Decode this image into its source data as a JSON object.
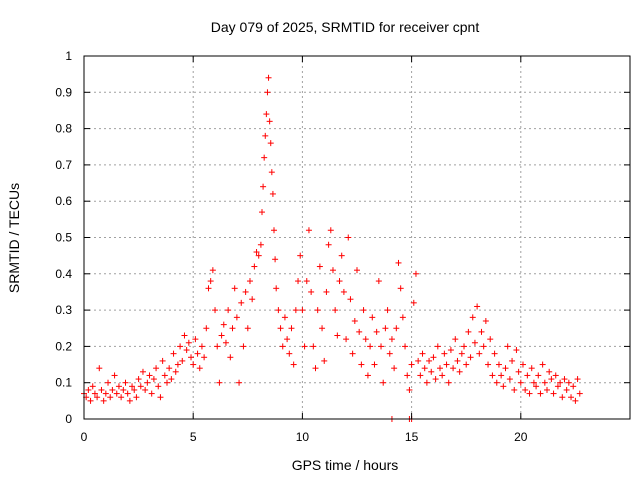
{
  "chart_data": {
    "type": "scatter",
    "title": "Day 079 of 2025, SRMTID for receiver cpnt",
    "xlabel": "GPS time / hours",
    "ylabel": "SRMTID / TECUs",
    "xlim": [
      0,
      25
    ],
    "ylim": [
      0,
      1
    ],
    "xticks": [
      0,
      5,
      10,
      15,
      20
    ],
    "xtick_labels": [
      "0",
      "5",
      "10",
      "15",
      "20"
    ],
    "yticks": [
      0,
      0.1,
      0.2,
      0.3,
      0.4,
      0.5,
      0.6,
      0.7,
      0.8,
      0.9,
      1
    ],
    "ytick_labels": [
      "0",
      "0.1",
      "0.2",
      "0.3",
      "0.4",
      "0.5",
      "0.6",
      "0.7",
      "0.8",
      "0.9",
      "1"
    ],
    "grid": true,
    "marker": "+",
    "color": "#ff0000",
    "series": [
      {
        "name": "SRMTID",
        "points": [
          [
            0.0,
            0.07
          ],
          [
            0.1,
            0.06
          ],
          [
            0.2,
            0.08
          ],
          [
            0.3,
            0.05
          ],
          [
            0.4,
            0.09
          ],
          [
            0.5,
            0.07
          ],
          [
            0.6,
            0.06
          ],
          [
            0.7,
            0.14
          ],
          [
            0.8,
            0.08
          ],
          [
            0.9,
            0.05
          ],
          [
            1.0,
            0.07
          ],
          [
            1.1,
            0.1
          ],
          [
            1.2,
            0.06
          ],
          [
            1.3,
            0.08
          ],
          [
            1.4,
            0.12
          ],
          [
            1.5,
            0.07
          ],
          [
            1.6,
            0.09
          ],
          [
            1.7,
            0.06
          ],
          [
            1.8,
            0.08
          ],
          [
            1.9,
            0.1
          ],
          [
            2.0,
            0.07
          ],
          [
            2.1,
            0.05
          ],
          [
            2.2,
            0.09
          ],
          [
            2.3,
            0.08
          ],
          [
            2.4,
            0.06
          ],
          [
            2.5,
            0.11
          ],
          [
            2.6,
            0.09
          ],
          [
            2.7,
            0.13
          ],
          [
            2.8,
            0.08
          ],
          [
            2.9,
            0.1
          ],
          [
            3.0,
            0.12
          ],
          [
            3.1,
            0.07
          ],
          [
            3.2,
            0.11
          ],
          [
            3.3,
            0.14
          ],
          [
            3.4,
            0.09
          ],
          [
            3.5,
            0.06
          ],
          [
            3.6,
            0.16
          ],
          [
            3.7,
            0.12
          ],
          [
            3.8,
            0.1
          ],
          [
            3.9,
            0.14
          ],
          [
            4.0,
            0.11
          ],
          [
            4.1,
            0.18
          ],
          [
            4.2,
            0.13
          ],
          [
            4.3,
            0.15
          ],
          [
            4.4,
            0.2
          ],
          [
            4.5,
            0.16
          ],
          [
            4.6,
            0.23
          ],
          [
            4.7,
            0.19
          ],
          [
            4.8,
            0.21
          ],
          [
            4.9,
            0.17
          ],
          [
            5.0,
            0.15
          ],
          [
            5.1,
            0.22
          ],
          [
            5.2,
            0.18
          ],
          [
            5.3,
            0.14
          ],
          [
            5.4,
            0.2
          ],
          [
            5.5,
            0.17
          ],
          [
            5.6,
            0.25
          ],
          [
            5.7,
            0.36
          ],
          [
            5.8,
            0.38
          ],
          [
            5.9,
            0.41
          ],
          [
            6.0,
            0.3
          ],
          [
            6.1,
            0.2
          ],
          [
            6.2,
            0.1
          ],
          [
            6.3,
            0.23
          ],
          [
            6.4,
            0.26
          ],
          [
            6.5,
            0.21
          ],
          [
            6.6,
            0.3
          ],
          [
            6.7,
            0.17
          ],
          [
            6.8,
            0.25
          ],
          [
            6.9,
            0.36
          ],
          [
            7.0,
            0.28
          ],
          [
            7.1,
            0.1
          ],
          [
            7.2,
            0.32
          ],
          [
            7.3,
            0.2
          ],
          [
            7.4,
            0.35
          ],
          [
            7.5,
            0.25
          ],
          [
            7.6,
            0.38
          ],
          [
            7.7,
            0.33
          ],
          [
            7.8,
            0.42
          ],
          [
            7.9,
            0.46
          ],
          [
            8.0,
            0.45
          ],
          [
            8.1,
            0.48
          ],
          [
            8.15,
            0.57
          ],
          [
            8.2,
            0.64
          ],
          [
            8.25,
            0.72
          ],
          [
            8.3,
            0.78
          ],
          [
            8.35,
            0.84
          ],
          [
            8.4,
            0.9
          ],
          [
            8.45,
            0.94
          ],
          [
            8.5,
            0.82
          ],
          [
            8.55,
            0.76
          ],
          [
            8.6,
            0.68
          ],
          [
            8.65,
            0.62
          ],
          [
            8.7,
            0.52
          ],
          [
            8.75,
            0.44
          ],
          [
            8.8,
            0.36
          ],
          [
            8.9,
            0.3
          ],
          [
            9.0,
            0.25
          ],
          [
            9.1,
            0.2
          ],
          [
            9.2,
            0.28
          ],
          [
            9.3,
            0.22
          ],
          [
            9.4,
            0.18
          ],
          [
            9.5,
            0.25
          ],
          [
            9.6,
            0.15
          ],
          [
            9.7,
            0.3
          ],
          [
            9.8,
            0.38
          ],
          [
            9.9,
            0.45
          ],
          [
            10.0,
            0.3
          ],
          [
            10.1,
            0.2
          ],
          [
            10.2,
            0.38
          ],
          [
            10.3,
            0.52
          ],
          [
            10.4,
            0.35
          ],
          [
            10.5,
            0.2
          ],
          [
            10.6,
            0.14
          ],
          [
            10.7,
            0.3
          ],
          [
            10.8,
            0.42
          ],
          [
            10.9,
            0.25
          ],
          [
            11.0,
            0.16
          ],
          [
            11.1,
            0.35
          ],
          [
            11.2,
            0.48
          ],
          [
            11.3,
            0.52
          ],
          [
            11.4,
            0.41
          ],
          [
            11.5,
            0.3
          ],
          [
            11.6,
            0.23
          ],
          [
            11.7,
            0.38
          ],
          [
            11.8,
            0.45
          ],
          [
            11.9,
            0.35
          ],
          [
            12.0,
            0.22
          ],
          [
            12.1,
            0.5
          ],
          [
            12.2,
            0.33
          ],
          [
            12.3,
            0.18
          ],
          [
            12.4,
            0.27
          ],
          [
            12.5,
            0.41
          ],
          [
            12.6,
            0.24
          ],
          [
            12.7,
            0.15
          ],
          [
            12.8,
            0.3
          ],
          [
            12.9,
            0.22
          ],
          [
            13.0,
            0.12
          ],
          [
            13.1,
            0.2
          ],
          [
            13.2,
            0.28
          ],
          [
            13.3,
            0.15
          ],
          [
            13.4,
            0.24
          ],
          [
            13.5,
            0.38
          ],
          [
            13.6,
            0.2
          ],
          [
            13.7,
            0.1
          ],
          [
            13.8,
            0.25
          ],
          [
            13.9,
            0.3
          ],
          [
            14.0,
            0.18
          ],
          [
            14.1,
            0.22
          ],
          [
            14.2,
            0.14
          ],
          [
            14.3,
            0.25
          ],
          [
            14.4,
            0.43
          ],
          [
            14.5,
            0.36
          ],
          [
            14.6,
            0.28
          ],
          [
            14.7,
            0.2
          ],
          [
            14.8,
            0.12
          ],
          [
            14.9,
            0.08
          ],
          [
            15.0,
            0.15
          ],
          [
            15.1,
            0.32
          ],
          [
            15.2,
            0.4
          ],
          [
            15.3,
            0.16
          ],
          [
            15.4,
            0.12
          ],
          [
            15.5,
            0.18
          ],
          [
            15.6,
            0.14
          ],
          [
            15.7,
            0.1
          ],
          [
            15.8,
            0.16
          ],
          [
            15.9,
            0.13
          ],
          [
            16.0,
            0.17
          ],
          [
            16.1,
            0.11
          ],
          [
            16.2,
            0.2
          ],
          [
            16.3,
            0.14
          ],
          [
            16.4,
            0.12
          ],
          [
            16.5,
            0.18
          ],
          [
            16.6,
            0.15
          ],
          [
            16.7,
            0.1
          ],
          [
            16.8,
            0.19
          ],
          [
            16.9,
            0.14
          ],
          [
            17.0,
            0.22
          ],
          [
            17.1,
            0.16
          ],
          [
            17.2,
            0.13
          ],
          [
            17.3,
            0.18
          ],
          [
            17.4,
            0.2
          ],
          [
            17.5,
            0.15
          ],
          [
            17.6,
            0.24
          ],
          [
            17.7,
            0.17
          ],
          [
            17.8,
            0.28
          ],
          [
            17.9,
            0.21
          ],
          [
            18.0,
            0.31
          ],
          [
            18.1,
            0.18
          ],
          [
            18.2,
            0.24
          ],
          [
            18.3,
            0.2
          ],
          [
            18.4,
            0.27
          ],
          [
            18.5,
            0.15
          ],
          [
            18.6,
            0.22
          ],
          [
            18.7,
            0.12
          ],
          [
            18.8,
            0.18
          ],
          [
            18.9,
            0.1
          ],
          [
            19.0,
            0.15
          ],
          [
            19.1,
            0.12
          ],
          [
            19.2,
            0.09
          ],
          [
            19.3,
            0.14
          ],
          [
            19.4,
            0.2
          ],
          [
            19.5,
            0.11
          ],
          [
            19.6,
            0.16
          ],
          [
            19.7,
            0.08
          ],
          [
            19.8,
            0.19
          ],
          [
            19.9,
            0.13
          ],
          [
            20.0,
            0.1
          ],
          [
            20.1,
            0.15
          ],
          [
            20.2,
            0.08
          ],
          [
            20.3,
            0.12
          ],
          [
            20.4,
            0.07
          ],
          [
            20.5,
            0.14
          ],
          [
            20.6,
            0.1
          ],
          [
            20.7,
            0.09
          ],
          [
            20.8,
            0.12
          ],
          [
            20.9,
            0.07
          ],
          [
            21.0,
            0.15
          ],
          [
            21.1,
            0.1
          ],
          [
            21.2,
            0.08
          ],
          [
            21.3,
            0.13
          ],
          [
            21.4,
            0.11
          ],
          [
            21.5,
            0.07
          ],
          [
            21.6,
            0.12
          ],
          [
            21.7,
            0.09
          ],
          [
            21.8,
            0.1
          ],
          [
            21.9,
            0.06
          ],
          [
            22.0,
            0.11
          ],
          [
            22.1,
            0.08
          ],
          [
            22.2,
            0.1
          ],
          [
            22.3,
            0.06
          ],
          [
            22.4,
            0.09
          ],
          [
            22.5,
            0.05
          ],
          [
            22.6,
            0.11
          ],
          [
            22.7,
            0.07
          ],
          [
            14.1,
            0.0
          ],
          [
            14.9,
            0.0
          ],
          [
            15.0,
            0.0
          ]
        ]
      }
    ]
  }
}
